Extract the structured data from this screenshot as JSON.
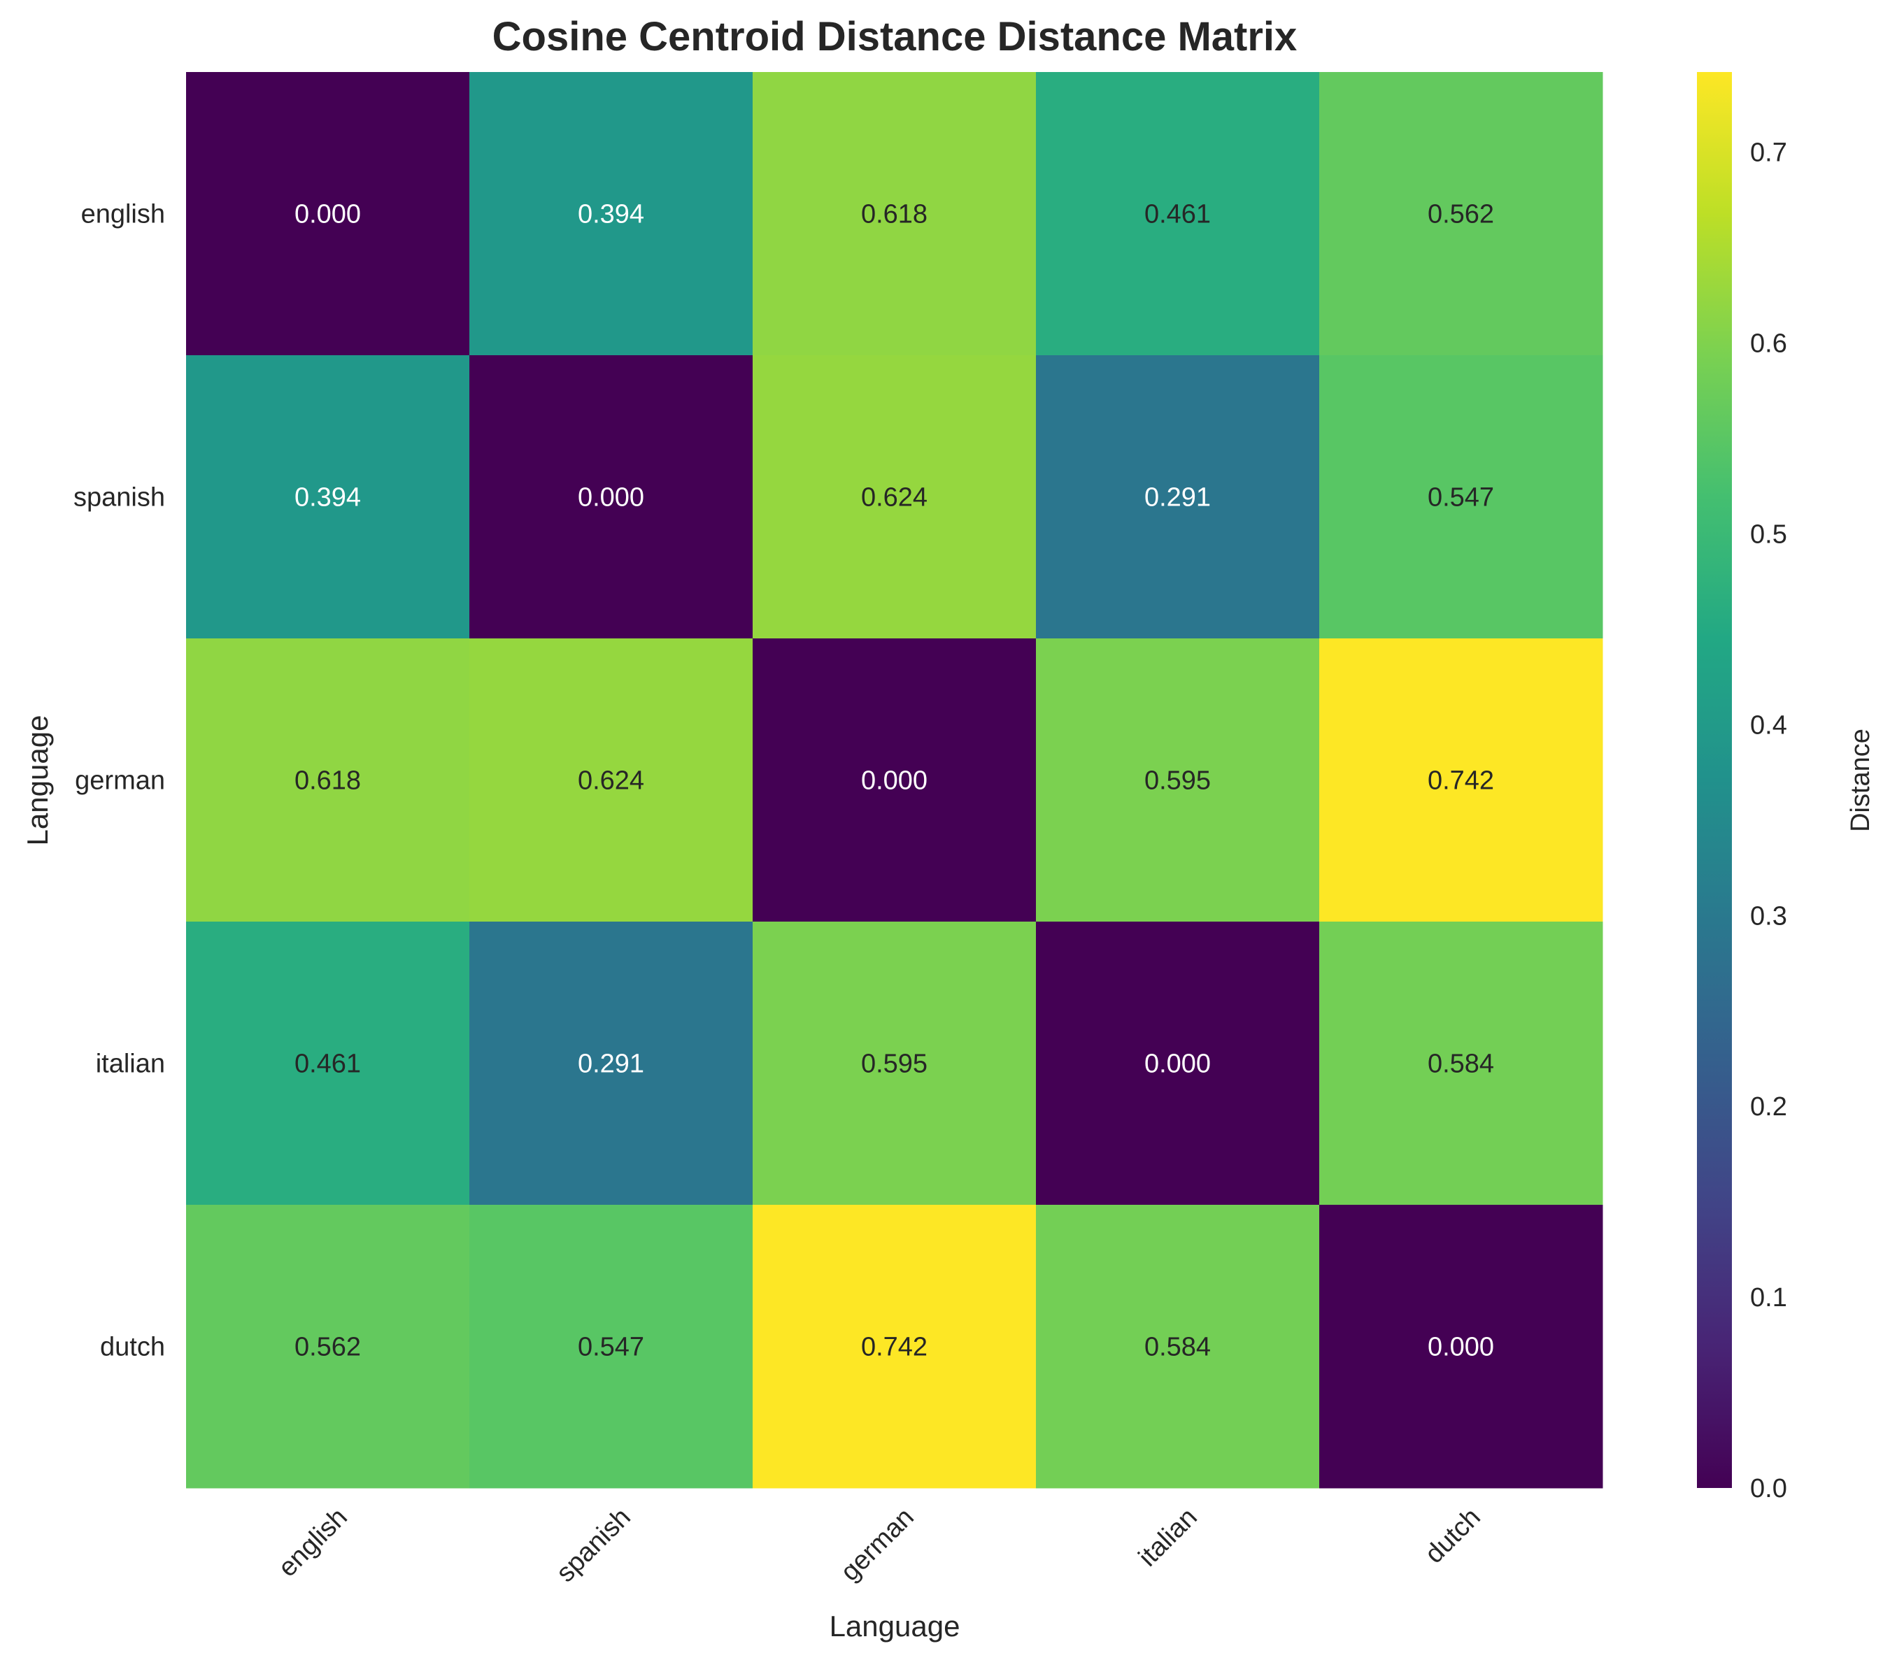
{
  "chart_data": {
    "type": "heatmap",
    "title": "Cosine Centroid Distance Distance Matrix",
    "xlabel": "Language",
    "ylabel": "Language",
    "x_categories": [
      "english",
      "spanish",
      "german",
      "italian",
      "dutch"
    ],
    "y_categories": [
      "english",
      "spanish",
      "german",
      "italian",
      "dutch"
    ],
    "values": [
      [
        0.0,
        0.394,
        0.618,
        0.461,
        0.562
      ],
      [
        0.394,
        0.0,
        0.624,
        0.291,
        0.547
      ],
      [
        0.618,
        0.624,
        0.0,
        0.595,
        0.742
      ],
      [
        0.461,
        0.291,
        0.595,
        0.0,
        0.584
      ],
      [
        0.562,
        0.547,
        0.742,
        0.584,
        0.0
      ]
    ],
    "cell_labels": [
      [
        "0.000",
        "0.394",
        "0.618",
        "0.461",
        "0.562"
      ],
      [
        "0.394",
        "0.000",
        "0.624",
        "0.291",
        "0.547"
      ],
      [
        "0.618",
        "0.624",
        "0.000",
        "0.595",
        "0.742"
      ],
      [
        "0.461",
        "0.291",
        "0.595",
        "0.000",
        "0.584"
      ],
      [
        "0.562",
        "0.547",
        "0.742",
        "0.584",
        "0.000"
      ]
    ],
    "colormap": "viridis",
    "colorbar": {
      "label": "Distance",
      "range": [
        0.0,
        0.742
      ],
      "ticks": [
        0.0,
        0.1,
        0.2,
        0.3,
        0.4,
        0.5,
        0.6,
        0.7
      ],
      "tick_labels": [
        "0.0",
        "0.1",
        "0.2",
        "0.3",
        "0.4",
        "0.5",
        "0.6",
        "0.7"
      ]
    },
    "grid": false
  }
}
